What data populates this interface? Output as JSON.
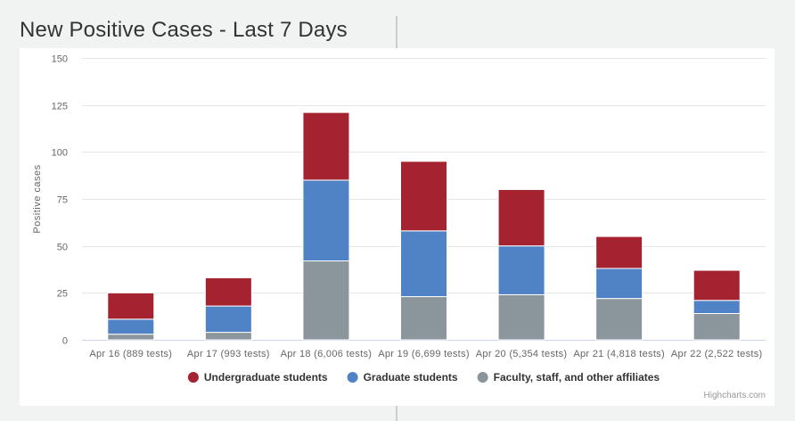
{
  "page": {
    "title": "New Positive Cases - Last 7 Days",
    "credits": "Highcharts.com"
  },
  "colors": {
    "undergraduate": "#a52330",
    "graduate": "#4f83c6",
    "faculty": "#8a959c"
  },
  "chart_data": {
    "type": "bar",
    "stacked": true,
    "title": "New Positive Cases - Last 7 Days",
    "xlabel": "",
    "ylabel": "Positive cases",
    "ylim": [
      0,
      150
    ],
    "yticks": [
      0,
      25,
      50,
      75,
      100,
      125,
      150
    ],
    "grid": true,
    "legend_position": "bottom",
    "categories": [
      "Apr 16 (889 tests)",
      "Apr 17 (993 tests)",
      "Apr 18 (6,006 tests)",
      "Apr 19 (6,699 tests)",
      "Apr 20 (5,354 tests)",
      "Apr 21 (4,818 tests)",
      "Apr 22 (2,522 tests)"
    ],
    "series": [
      {
        "name": "Undergraduate students",
        "color": "#a52330",
        "values": [
          14,
          15,
          36,
          37,
          30,
          17,
          16
        ]
      },
      {
        "name": "Graduate students",
        "color": "#4f83c6",
        "values": [
          8,
          14,
          43,
          35,
          26,
          16,
          7
        ]
      },
      {
        "name": "Faculty, staff, and other affiliates",
        "color": "#8a959c",
        "values": [
          3,
          4,
          42,
          23,
          24,
          22,
          14
        ]
      }
    ]
  }
}
